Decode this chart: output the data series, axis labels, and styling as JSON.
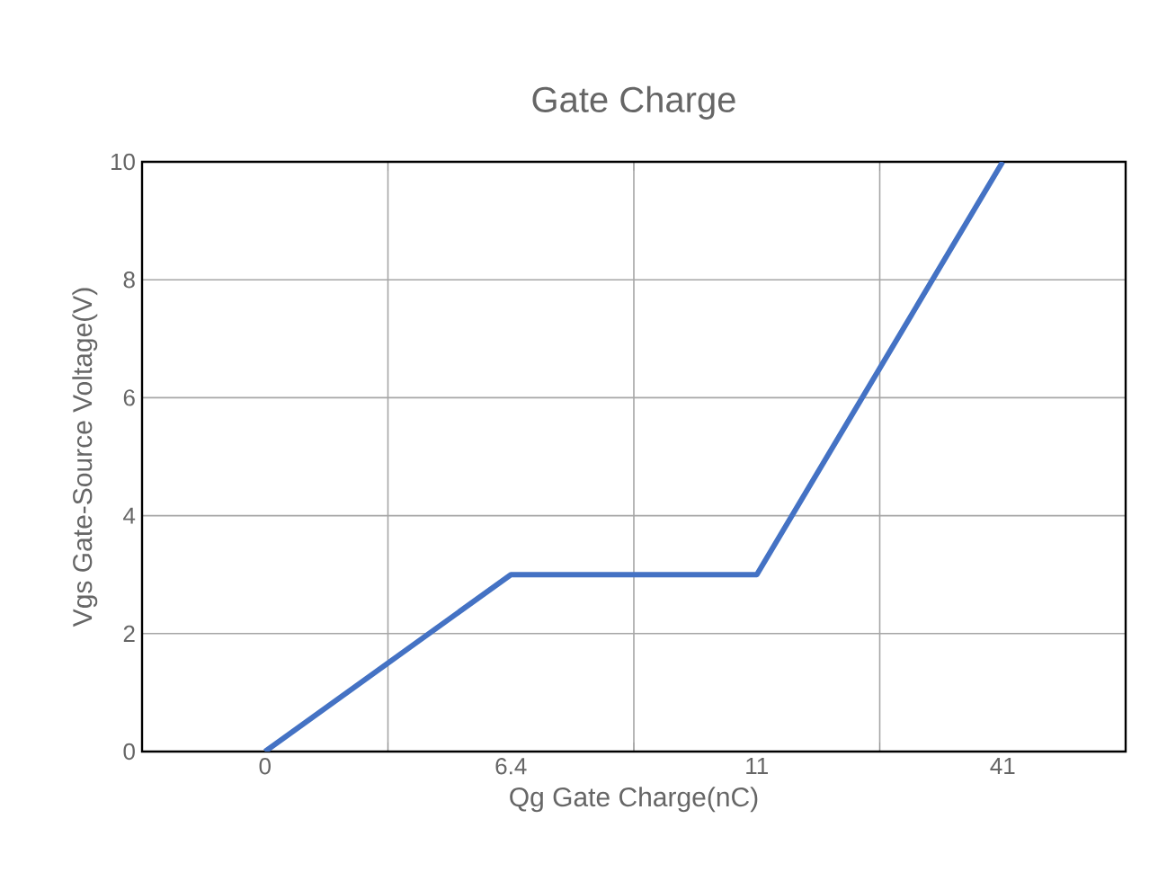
{
  "chart_data": {
    "type": "line",
    "title": "Gate Charge",
    "xlabel": "Qg Gate Charge(nC)",
    "ylabel": "Vgs Gate-Source Voltage(V)",
    "categories": [
      "0",
      "6.4",
      "11",
      "41"
    ],
    "series": [
      {
        "color": "#4472c4",
        "values": [
          0,
          3,
          3,
          10
        ]
      }
    ],
    "ylim": [
      0,
      10
    ],
    "yticks": [
      0,
      2,
      4,
      6,
      8,
      10
    ],
    "grid": true,
    "marker": "none",
    "line_style": "solid"
  }
}
